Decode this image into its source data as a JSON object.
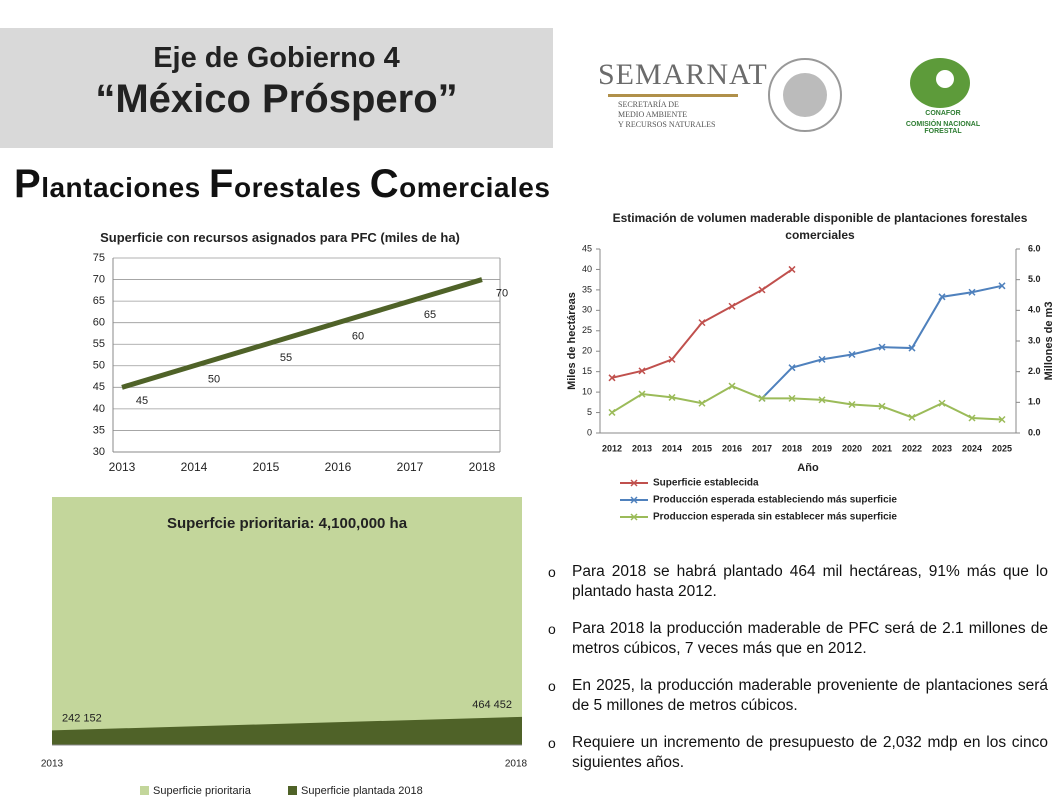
{
  "header": {
    "title": "Eje de Gobierno 4",
    "subtitle": "“México Próspero”"
  },
  "logos": {
    "semarnat": "SEMARNAT",
    "semarnat_sub": [
      "SECRETARÍA DE",
      "MEDIO AMBIENTE",
      "Y RECURSOS NATURALES"
    ],
    "conafor": "CONAFOR",
    "conafor_sub": "COMISIÓN NACIONAL FORESTAL"
  },
  "heading": [
    {
      "initial": "P",
      "rest": "lantaciones"
    },
    {
      "initial": "F",
      "rest": "orestales"
    },
    {
      "initial": "C",
      "rest": "omerciales"
    }
  ],
  "chart_data": [
    {
      "type": "line",
      "title": "Superficie con recursos asignados para PFC (miles de ha)",
      "categories": [
        "2013",
        "2014",
        "2015",
        "2016",
        "2017",
        "2018"
      ],
      "values": [
        45,
        50,
        55,
        60,
        65,
        70
      ],
      "color": "#4f6228",
      "ylim": [
        30,
        75
      ],
      "yticks": [
        30,
        35,
        40,
        45,
        50,
        55,
        60,
        65,
        70,
        75
      ],
      "grid": true
    },
    {
      "type": "line",
      "title": "Estimación de volumen maderable disponible de plantaciones forestales comerciales",
      "categories": [
        "2012",
        "2013",
        "2014",
        "2015",
        "2016",
        "2017",
        "2018",
        "2019",
        "2020",
        "2021",
        "2022",
        "2023",
        "2024",
        "2025"
      ],
      "xlabel": "Año",
      "ylabel": "Miles de hectáreas",
      "y2label": "Millones de m3",
      "ylim": [
        0,
        45
      ],
      "yticks": [
        0,
        5,
        10,
        15,
        20,
        25,
        30,
        35,
        40,
        45
      ],
      "y2lim": [
        0,
        6
      ],
      "y2ticks": [
        {
          "value": 0,
          "label": "0.0"
        },
        {
          "value": 1,
          "label": "1.0"
        },
        {
          "value": 2,
          "label": "2.0"
        },
        {
          "value": 3,
          "label": "3.0"
        },
        {
          "value": 4,
          "label": "4.0"
        },
        {
          "value": 5,
          "label": "5.0"
        },
        {
          "value": 6,
          "label": "6.0"
        }
      ],
      "grid": false,
      "series": [
        {
          "name": "Superficie establecida",
          "color": "#c0504d",
          "values": [
            13.5,
            15.2,
            18,
            27,
            31,
            35,
            40,
            null,
            null,
            null,
            null,
            null,
            null,
            null
          ]
        },
        {
          "name": "Producción esperada estableciendo más superficie",
          "color": "#4f81bd",
          "axis": "y2",
          "values": [
            null,
            null,
            null,
            null,
            null,
            1.13,
            2.13,
            2.4,
            2.56,
            2.8,
            2.77,
            4.44,
            4.59,
            4.8
          ]
        },
        {
          "name": "Produccion esperada sin establecer más superficie",
          "color": "#9bbb59",
          "axis": "y2",
          "values": [
            0.67,
            1.27,
            1.16,
            0.97,
            1.53,
            1.13,
            1.13,
            1.08,
            0.93,
            0.87,
            0.51,
            0.97,
            0.49,
            0.44
          ]
        }
      ]
    },
    {
      "type": "area",
      "title": "Superfcie prioritaria: 4,100,000 ha",
      "categories": [
        "2013",
        "2018"
      ],
      "ylim": [
        0,
        4100000
      ],
      "series": [
        {
          "name": "Superficie prioritaria",
          "color": "#c3d69b",
          "values": [
            4100000,
            4100000
          ]
        },
        {
          "name": "Superficie plantada 2018",
          "color": "#4f6228",
          "values": [
            242152,
            464452
          ],
          "value_labels": [
            "242 152",
            "464 452"
          ]
        }
      ]
    }
  ],
  "bullets": [
    "Para 2018 se habrá plantado 464 mil hectáreas, 91% más que lo plantado hasta 2012.",
    "Para 2018 la producción maderable de PFC será de 2.1 millones de metros cúbicos, 7 veces más que en 2012.",
    "En 2025, la producción maderable proveniente de plantaciones será de 5 millones de metros cúbicos.",
    "Requiere un incremento de presupuesto de 2,032 mdp en los cinco siguientes años."
  ]
}
